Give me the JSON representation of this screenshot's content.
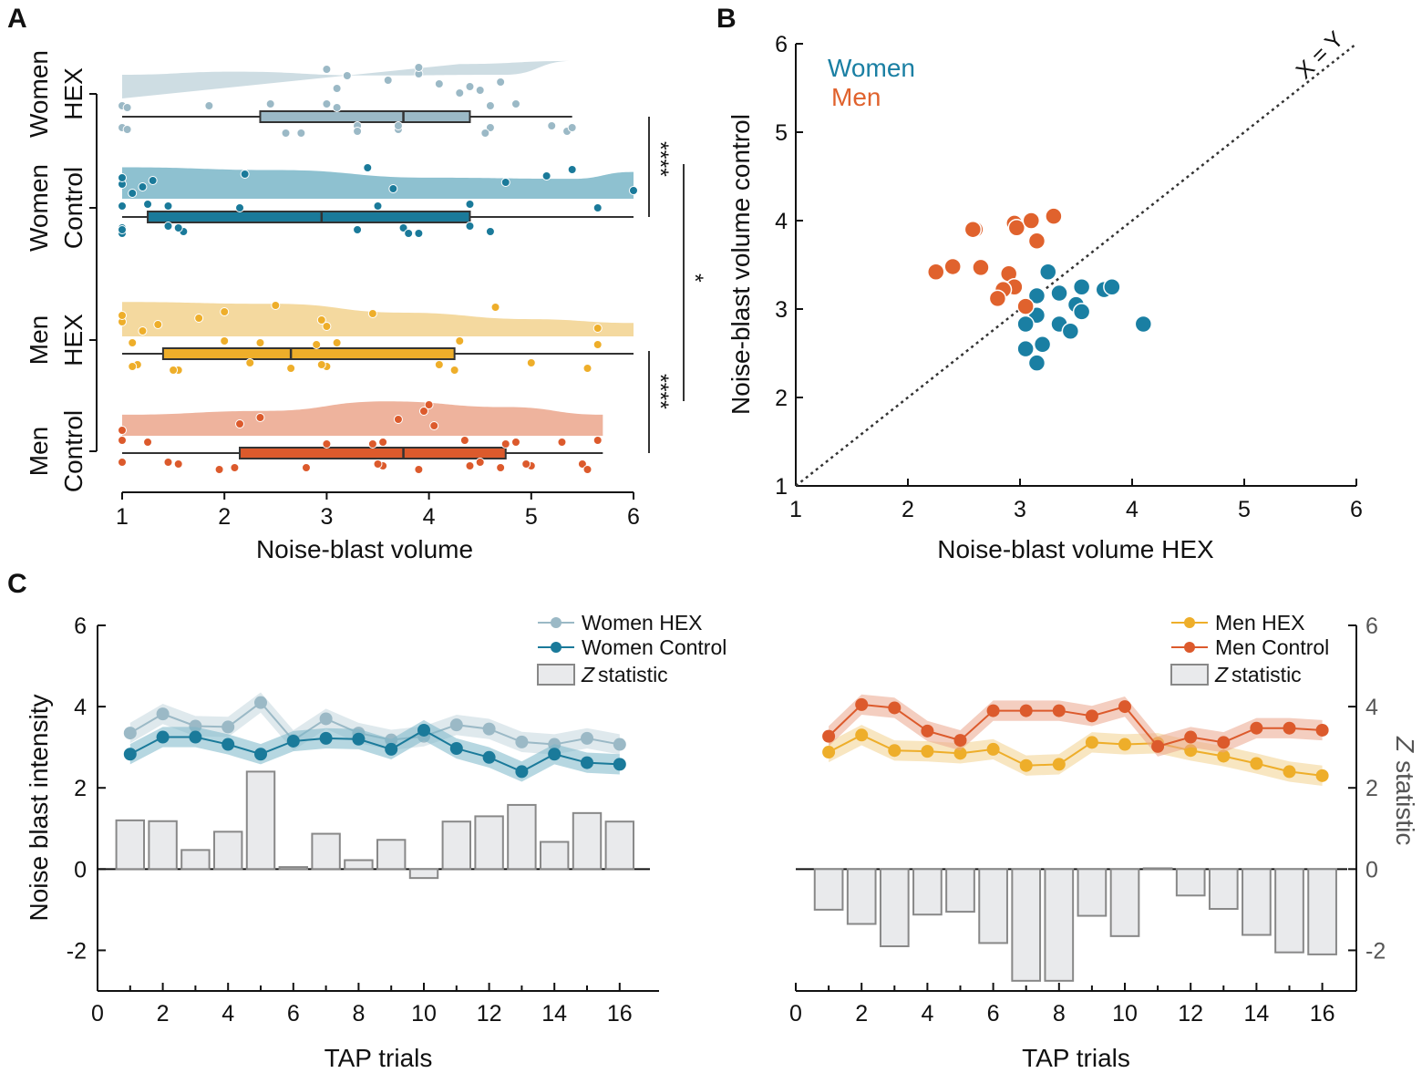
{
  "panels": {
    "a": "A",
    "b": "B",
    "c": "C"
  },
  "colors": {
    "women_hex": "#9bb9c6",
    "women_hex_area": "#c5d7de",
    "women_control": "#1a7a9a",
    "women_control_area": "#7ab6c8",
    "men_hex": "#eeae2a",
    "men_hex_area": "#f2d28e",
    "men_control": "#dc5a2c",
    "men_control_area": "#eba68c",
    "women_scatter": "#1a7fa3",
    "men_scatter": "#e0622d",
    "zbar_fill": "#e9eaec",
    "zbar_stroke": "#888888"
  },
  "chart_data": [
    {
      "type": "raincloud",
      "panel": "A",
      "xlabel": "Noise-blast volume",
      "xlim": [
        1,
        6
      ],
      "xticks": [
        1,
        2,
        3,
        4,
        5,
        6
      ],
      "groups": [
        {
          "line1": "Women",
          "line2": "HEX",
          "color_key": "women_hex",
          "box": {
            "min": 1,
            "q1": 2.35,
            "median": 3.75,
            "q3": 4.4,
            "max": 5.4
          },
          "cloud_points": [
            4.3,
            4.4,
            3.6,
            3.9,
            3.9,
            3.1,
            4.7,
            3.2,
            3.0,
            4.5,
            4.1
          ],
          "rain_points": [
            1.0,
            1.0,
            2.75,
            3.0,
            3.3,
            3.3,
            3.1,
            3.7,
            4.6,
            4.6,
            4.55,
            4.85,
            5.2,
            5.35,
            1.05,
            1.05,
            1.85,
            5.4,
            2.6,
            2.45,
            3.7
          ]
        },
        {
          "line1": "Women",
          "line2": "Control",
          "color_key": "women_control",
          "box": {
            "min": 1,
            "q1": 1.25,
            "median": 2.95,
            "q3": 4.4,
            "max": 6.0
          },
          "cloud_points": [
            1.1,
            1.2,
            1.3,
            2.2,
            3.4,
            3.65,
            4.75,
            5.15,
            5.4,
            6.0,
            1.0,
            1.0
          ],
          "rain_points": [
            1.0,
            1.0,
            1.0,
            1.25,
            1.45,
            1.6,
            2.15,
            3.3,
            3.5,
            3.75,
            3.8,
            4.4,
            4.4,
            4.6,
            5.65,
            1.0,
            1.45,
            1.55,
            3.9
          ]
        },
        {
          "line1": "Men",
          "line2": "HEX",
          "color_key": "men_hex",
          "box": {
            "min": 1,
            "q1": 1.4,
            "median": 2.65,
            "q3": 4.25,
            "max": 6.0
          },
          "cloud_points": [
            1.2,
            1.35,
            1.75,
            2.0,
            2.5,
            3.0,
            2.95,
            3.45,
            4.65,
            5.65,
            1.0,
            1.0
          ],
          "rain_points": [
            1.1,
            1.15,
            1.55,
            2.0,
            2.25,
            2.65,
            2.9,
            3.0,
            3.1,
            4.1,
            4.25,
            4.3,
            5.0,
            5.55,
            5.65,
            1.1,
            2.35,
            2.95,
            1.5
          ]
        },
        {
          "line1": "Men",
          "line2": "Control",
          "color_key": "men_control",
          "box": {
            "min": 1,
            "q1": 2.15,
            "median": 3.75,
            "q3": 4.75,
            "max": 5.7
          },
          "cloud_points": [
            1.0,
            2.15,
            2.35,
            3.95,
            4.0,
            4.05,
            3.7
          ],
          "rain_points": [
            1.25,
            1.55,
            1.95,
            1.0,
            1.0,
            2.8,
            3.0,
            3.55,
            3.55,
            3.5,
            3.9,
            4.35,
            4.5,
            4.7,
            4.75,
            5.0,
            5.3,
            5.5,
            5.55,
            5.65,
            1.45,
            2.1,
            3.45,
            4.4,
            4.85,
            4.95
          ]
        }
      ],
      "significance": [
        {
          "label": "****",
          "between": [
            "Women HEX",
            "Women Control"
          ]
        },
        {
          "label": "*",
          "between": [
            "Women",
            "Men"
          ]
        },
        {
          "label": "****",
          "between": [
            "Men HEX",
            "Men Control"
          ]
        }
      ]
    },
    {
      "type": "scatter",
      "panel": "B",
      "xlabel": "Noise-blast volume HEX",
      "ylabel": "Noise-blast volume control",
      "xlim": [
        1,
        6
      ],
      "ylim": [
        1,
        6
      ],
      "xticks": [
        1,
        2,
        3,
        4,
        5,
        6
      ],
      "yticks": [
        1,
        2,
        3,
        4,
        5,
        6
      ],
      "diagonal_label": "X = Y",
      "series": [
        {
          "name": "Women",
          "color_key": "women_scatter",
          "points": [
            [
              3.25,
              3.42
            ],
            [
              3.55,
              3.25
            ],
            [
              3.75,
              3.22
            ],
            [
              3.82,
              3.25
            ],
            [
              3.15,
              3.15
            ],
            [
              3.35,
              3.18
            ],
            [
              3.5,
              3.05
            ],
            [
              3.55,
              2.97
            ],
            [
              3.15,
              2.93
            ],
            [
              3.05,
              2.83
            ],
            [
              3.35,
              2.83
            ],
            [
              3.45,
              2.75
            ],
            [
              3.2,
              2.6
            ],
            [
              3.05,
              2.55
            ],
            [
              4.1,
              2.83
            ],
            [
              3.15,
              2.39
            ]
          ]
        },
        {
          "name": "Men",
          "color_key": "men_scatter",
          "points": [
            [
              2.6,
              3.9
            ],
            [
              2.58,
              3.9
            ],
            [
              2.95,
              3.97
            ],
            [
              2.97,
              3.92
            ],
            [
              3.1,
              4.0
            ],
            [
              3.3,
              4.05
            ],
            [
              3.15,
              3.77
            ],
            [
              2.4,
              3.48
            ],
            [
              2.25,
              3.42
            ],
            [
              2.65,
              3.47
            ],
            [
              2.9,
              3.4
            ],
            [
              2.95,
              3.25
            ],
            [
              2.85,
              3.22
            ],
            [
              2.8,
              3.12
            ],
            [
              3.05,
              3.03
            ]
          ]
        }
      ]
    },
    {
      "type": "line+bar",
      "panel": "C-left",
      "xlabel": "TAP trials",
      "ylabel": "Noise blast intensity",
      "xlim": [
        0,
        17
      ],
      "ylim": [
        -3,
        6
      ],
      "xticks": [
        0,
        2,
        4,
        6,
        8,
        10,
        12,
        14,
        16
      ],
      "yticks": [
        -2,
        0,
        2,
        4,
        6
      ],
      "x": [
        1,
        2,
        3,
        4,
        5,
        6,
        7,
        8,
        9,
        10,
        11,
        12,
        13,
        14,
        15,
        16
      ],
      "series": [
        {
          "name": "Women HEX",
          "color_key": "women_hex",
          "values": [
            3.35,
            3.82,
            3.52,
            3.5,
            4.1,
            3.17,
            3.7,
            3.35,
            3.18,
            3.27,
            3.55,
            3.45,
            3.13,
            3.07,
            3.22,
            3.07
          ]
        },
        {
          "name": "Women Control",
          "color_key": "women_control",
          "values": [
            2.83,
            3.25,
            3.25,
            3.07,
            2.83,
            3.15,
            3.22,
            3.2,
            2.95,
            3.42,
            2.97,
            2.75,
            2.4,
            2.83,
            2.62,
            2.58
          ]
        }
      ],
      "z_statistic": {
        "name": "statistic",
        "prefix": "Z",
        "values": [
          1.2,
          1.18,
          0.47,
          0.92,
          2.4,
          0.05,
          0.87,
          0.22,
          0.72,
          -0.22,
          1.17,
          1.3,
          1.58,
          0.67,
          1.38,
          1.17
        ]
      },
      "legend": [
        "Women HEX",
        "Women Control",
        "statistic"
      ]
    },
    {
      "type": "line+bar",
      "panel": "C-right",
      "xlabel": "TAP trials",
      "ylabel": "statistic",
      "ylabel_prefix": "Z",
      "xlim": [
        0,
        17
      ],
      "ylim": [
        -3,
        6
      ],
      "xticks": [
        0,
        2,
        4,
        6,
        8,
        10,
        12,
        14,
        16
      ],
      "yticks": [
        -2,
        0,
        2,
        4,
        6
      ],
      "x": [
        1,
        2,
        3,
        4,
        5,
        6,
        7,
        8,
        9,
        10,
        11,
        12,
        13,
        14,
        15,
        16
      ],
      "series": [
        {
          "name": "Men HEX",
          "color_key": "men_hex",
          "values": [
            2.88,
            3.3,
            2.92,
            2.9,
            2.85,
            2.95,
            2.55,
            2.58,
            3.12,
            3.07,
            3.1,
            2.92,
            2.78,
            2.6,
            2.4,
            2.3
          ]
        },
        {
          "name": "Men Control",
          "color_key": "men_control",
          "values": [
            3.27,
            4.05,
            3.97,
            3.4,
            3.17,
            3.9,
            3.9,
            3.9,
            3.77,
            4.0,
            3.02,
            3.25,
            3.12,
            3.47,
            3.47,
            3.42
          ]
        }
      ],
      "z_statistic": {
        "name": "statistic",
        "prefix": "Z",
        "values": [
          -1.0,
          -1.35,
          -1.9,
          -1.12,
          -1.05,
          -1.82,
          -2.75,
          -2.75,
          -1.15,
          -1.65,
          0.02,
          -0.65,
          -0.98,
          -1.62,
          -2.05,
          -2.1
        ]
      },
      "legend": [
        "Men HEX",
        "Men Control",
        "statistic"
      ]
    }
  ]
}
